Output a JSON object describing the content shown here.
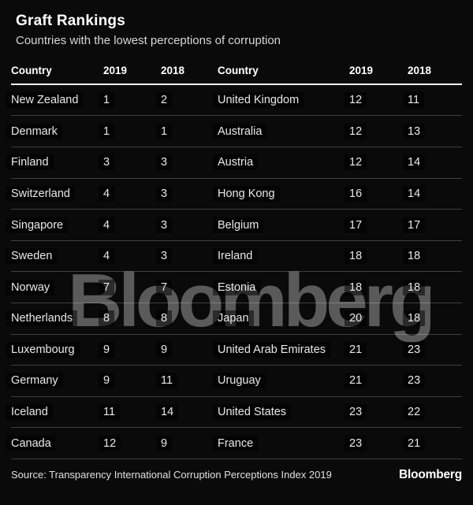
{
  "header": {
    "title": "Graft Rankings",
    "subtitle": "Countries with the lowest perceptions of corruption"
  },
  "table": {
    "columns_display": [
      "Country",
      "2019",
      "2018",
      "Country",
      "2019",
      "2018"
    ]
  },
  "chart_data": {
    "type": "table",
    "title": "Graft Rankings",
    "subtitle": "Countries with the lowest perceptions of corruption",
    "columns": [
      "Country",
      "2019",
      "2018"
    ],
    "layout": "two side-by-side column groups, 12 rows each",
    "rows": [
      [
        "New Zealand",
        1,
        2
      ],
      [
        "Denmark",
        1,
        1
      ],
      [
        "Finland",
        3,
        3
      ],
      [
        "Switzerland",
        4,
        3
      ],
      [
        "Singapore",
        4,
        3
      ],
      [
        "Sweden",
        4,
        3
      ],
      [
        "Norway",
        7,
        7
      ],
      [
        "Netherlands",
        8,
        8
      ],
      [
        "Luxembourg",
        9,
        9
      ],
      [
        "Germany",
        9,
        11
      ],
      [
        "Iceland",
        11,
        14
      ],
      [
        "Canada",
        12,
        9
      ],
      [
        "United Kingdom",
        12,
        11
      ],
      [
        "Australia",
        12,
        13
      ],
      [
        "Austria",
        12,
        14
      ],
      [
        "Hong Kong",
        16,
        14
      ],
      [
        "Belgium",
        17,
        17
      ],
      [
        "Ireland",
        18,
        18
      ],
      [
        "Estonia",
        18,
        18
      ],
      [
        "Japan",
        20,
        18
      ],
      [
        "United Arab Emirates",
        21,
        23
      ],
      [
        "Uruguay",
        21,
        23
      ],
      [
        "United States",
        23,
        22
      ],
      [
        "France",
        23,
        21
      ]
    ]
  },
  "watermark": "Bloomberg",
  "footer": {
    "source": "Source: Transparency International Corruption Perceptions Index 2019",
    "logo": "Bloomberg"
  },
  "colors": {
    "background": "#0a0a0a",
    "title": "#ffffff",
    "subtitle": "#d6d6d6",
    "row_text": "#e8e8e8",
    "header_rule": "#ffffff",
    "row_divider": "rgba(255,255,255,0.22)",
    "watermark": "rgba(255,255,255,0.33)"
  }
}
